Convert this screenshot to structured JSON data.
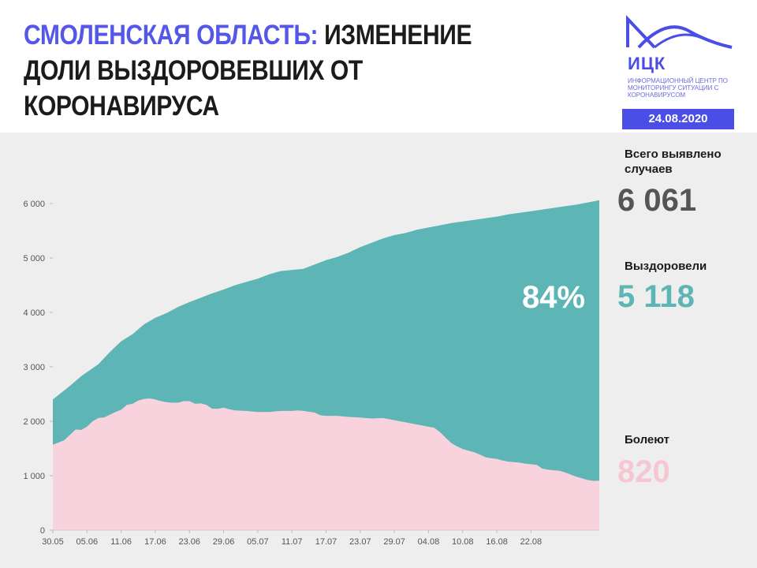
{
  "header": {
    "title_accent": "Смоленская область:",
    "title_rest": "изменение доли выздоровевших от коронавируса",
    "logo": {
      "abbr": "ИЦК",
      "subtitle": "Информационный центр по мониторингу ситуации с коронавирусом",
      "date": "24.08.2020"
    }
  },
  "stats": {
    "total_label": "Всего выявлено случаев",
    "total_value": "6 061",
    "recovered_label": "Выздоровели",
    "recovered_value": "5 118",
    "sick_label": "Болеют",
    "sick_value": "820",
    "recovered_percent": "84%"
  },
  "colors": {
    "accent": "#5457e8",
    "recovered": "#5db5b5",
    "sick": "#f8d2dc",
    "total_text": "#555555",
    "recovered_text": "#5db5b5",
    "sick_text": "#f6c7d3"
  },
  "chart_data": {
    "type": "area",
    "stacked": true,
    "x_ticks": [
      "30.05",
      "05.06",
      "11.06",
      "17.06",
      "23.06",
      "29.06",
      "05.07",
      "11.07",
      "17.07",
      "23.07",
      "29.07",
      "04.08",
      "10.08",
      "16.08",
      "22.08"
    ],
    "y_ticks": [
      "0",
      "1 000",
      "2 000",
      "3 000",
      "4 000",
      "5 000",
      "6 000"
    ],
    "ylim": [
      0,
      6200
    ],
    "x_day_range": [
      0,
      86
    ],
    "grid": false,
    "series": [
      {
        "name": "Болеют",
        "color": "#f8d2dc",
        "points": [
          [
            0,
            1570
          ],
          [
            2,
            1650
          ],
          [
            3,
            1750
          ],
          [
            4,
            1850
          ],
          [
            5,
            1840
          ],
          [
            6,
            1900
          ],
          [
            7,
            2000
          ],
          [
            8,
            2060
          ],
          [
            9,
            2070
          ],
          [
            10,
            2120
          ],
          [
            11,
            2170
          ],
          [
            12,
            2210
          ],
          [
            13,
            2300
          ],
          [
            14,
            2320
          ],
          [
            15,
            2380
          ],
          [
            16,
            2410
          ],
          [
            17,
            2420
          ],
          [
            18,
            2400
          ],
          [
            19,
            2370
          ],
          [
            20,
            2350
          ],
          [
            21,
            2340
          ],
          [
            22,
            2340
          ],
          [
            23,
            2370
          ],
          [
            24,
            2370
          ],
          [
            25,
            2320
          ],
          [
            26,
            2330
          ],
          [
            27,
            2300
          ],
          [
            28,
            2230
          ],
          [
            29,
            2230
          ],
          [
            30,
            2250
          ],
          [
            31,
            2220
          ],
          [
            32,
            2200
          ],
          [
            34,
            2190
          ],
          [
            36,
            2170
          ],
          [
            38,
            2170
          ],
          [
            40,
            2190
          ],
          [
            42,
            2190
          ],
          [
            43,
            2200
          ],
          [
            44,
            2190
          ],
          [
            46,
            2160
          ],
          [
            47,
            2110
          ],
          [
            48,
            2100
          ],
          [
            50,
            2100
          ],
          [
            52,
            2080
          ],
          [
            54,
            2070
          ],
          [
            56,
            2050
          ],
          [
            58,
            2060
          ],
          [
            60,
            2020
          ],
          [
            62,
            1980
          ],
          [
            64,
            1940
          ],
          [
            66,
            1900
          ],
          [
            67,
            1880
          ],
          [
            68,
            1800
          ],
          [
            69,
            1700
          ],
          [
            70,
            1600
          ],
          [
            71,
            1540
          ],
          [
            72,
            1490
          ],
          [
            73,
            1460
          ],
          [
            74,
            1430
          ],
          [
            75,
            1390
          ],
          [
            76,
            1340
          ],
          [
            77,
            1320
          ],
          [
            78,
            1310
          ],
          [
            79,
            1280
          ],
          [
            80,
            1260
          ],
          [
            81,
            1250
          ],
          [
            82,
            1240
          ],
          [
            83,
            1220
          ],
          [
            84,
            1210
          ],
          [
            85,
            1200
          ],
          [
            86,
            1130
          ],
          [
            87,
            1110
          ],
          [
            88,
            1100
          ],
          [
            89,
            1090
          ],
          [
            90,
            1060
          ],
          [
            91,
            1020
          ],
          [
            92,
            980
          ],
          [
            93,
            950
          ],
          [
            94,
            920
          ],
          [
            95,
            905
          ],
          [
            96,
            910
          ]
        ]
      },
      {
        "name": "Выздоровели",
        "color": "#5db5b5",
        "points": [
          [
            0,
            2400
          ],
          [
            3,
            2650
          ],
          [
            5,
            2830
          ],
          [
            8,
            3050
          ],
          [
            10,
            3270
          ],
          [
            12,
            3470
          ],
          [
            14,
            3600
          ],
          [
            16,
            3780
          ],
          [
            18,
            3900
          ],
          [
            20,
            3990
          ],
          [
            22,
            4100
          ],
          [
            24,
            4190
          ],
          [
            26,
            4270
          ],
          [
            28,
            4350
          ],
          [
            30,
            4420
          ],
          [
            32,
            4500
          ],
          [
            34,
            4560
          ],
          [
            36,
            4620
          ],
          [
            38,
            4700
          ],
          [
            40,
            4760
          ],
          [
            42,
            4780
          ],
          [
            44,
            4800
          ],
          [
            46,
            4880
          ],
          [
            48,
            4960
          ],
          [
            50,
            5020
          ],
          [
            52,
            5100
          ],
          [
            54,
            5200
          ],
          [
            56,
            5280
          ],
          [
            58,
            5360
          ],
          [
            60,
            5420
          ],
          [
            62,
            5460
          ],
          [
            64,
            5520
          ],
          [
            66,
            5560
          ],
          [
            68,
            5600
          ],
          [
            70,
            5640
          ],
          [
            72,
            5670
          ],
          [
            74,
            5700
          ],
          [
            76,
            5730
          ],
          [
            78,
            5760
          ],
          [
            80,
            5800
          ],
          [
            82,
            5830
          ],
          [
            84,
            5860
          ],
          [
            86,
            5890
          ],
          [
            88,
            5920
          ],
          [
            90,
            5950
          ],
          [
            92,
            5980
          ],
          [
            94,
            6020
          ],
          [
            96,
            6061
          ]
        ]
      }
    ]
  }
}
